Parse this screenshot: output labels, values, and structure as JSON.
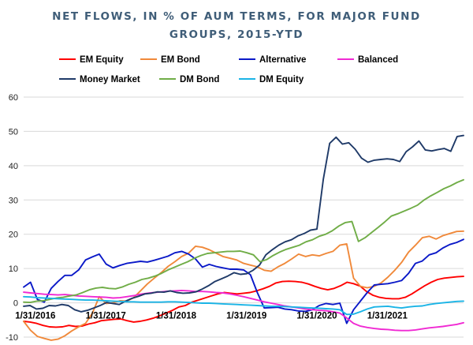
{
  "chart_data": {
    "type": "line",
    "title_lines": [
      "NET FLOWS, IN % OF AUM TERMS, FOR MAJOR FUND",
      "GROUPS, 2015-YTD"
    ],
    "xlabel": "",
    "ylabel": "",
    "ylim": [
      -10,
      60
    ],
    "yticks": [
      "-10",
      "0",
      "10",
      "20",
      "30",
      "40",
      "50",
      "60"
    ],
    "x_tick_labels": [
      "1/31/2016",
      "1/31/2017",
      "1/31/2018",
      "1/31/2019",
      "1/31/2020",
      "1/31/2021"
    ],
    "x_tick_index": [
      2,
      14,
      26,
      38,
      50,
      62
    ],
    "n_points": 76,
    "grid": true,
    "legend_position": "top",
    "series": [
      {
        "name": "EM Equity",
        "color": "#ff0000",
        "values": [
          -5.4,
          -5.6,
          -6.0,
          -6.6,
          -7.0,
          -7.1,
          -7.0,
          -6.6,
          -6.9,
          -6.8,
          -6.2,
          -5.8,
          -5.2,
          -5.0,
          -4.8,
          -4.7,
          -5.2,
          -5.6,
          -5.4,
          -5.0,
          -4.5,
          -3.8,
          -3.0,
          -2.2,
          -1.2,
          -0.8,
          0.2,
          0.8,
          1.4,
          2.0,
          2.6,
          3.0,
          2.8,
          2.6,
          2.8,
          3.0,
          3.5,
          4.1,
          4.8,
          5.8,
          6.2,
          6.3,
          6.2,
          6.0,
          5.5,
          4.8,
          4.2,
          3.8,
          4.2,
          5.0,
          6.0,
          5.6,
          4.9,
          3.3,
          2.2,
          1.6,
          1.3,
          1.2,
          1.2,
          1.6,
          2.6,
          3.8,
          5.0,
          6.0,
          6.8,
          7.2,
          7.4,
          7.6,
          7.7
        ]
      },
      {
        "name": "EM Bond",
        "color": "#f0893a",
        "values": [
          -5.4,
          -8.0,
          -9.8,
          -10.4,
          -10.9,
          -10.6,
          -9.6,
          -8.2,
          -7.0,
          -6.0,
          -3.0,
          1.8,
          -0.2,
          0.0,
          0.6,
          0.5,
          1.5,
          3.5,
          5.5,
          7.2,
          8.8,
          10.6,
          12.0,
          13.5,
          14.5,
          16.5,
          16.2,
          15.5,
          14.5,
          13.5,
          13.0,
          12.5,
          11.5,
          11.0,
          10.5,
          9.5,
          9.2,
          10.5,
          11.5,
          12.8,
          14.2,
          13.5,
          14.0,
          13.7,
          14.4,
          15.0,
          16.8,
          17.2,
          7.2,
          4.8,
          4.4,
          4.8,
          5.8,
          7.5,
          9.5,
          11.8,
          14.8,
          16.8,
          19.0,
          19.4,
          18.6,
          19.6,
          20.2,
          20.8,
          20.9
        ]
      },
      {
        "name": "Alternative",
        "color": "#0a19c8",
        "values": [
          4.6,
          6.0,
          1.0,
          0.2,
          4.2,
          6.2,
          8.0,
          8.0,
          9.6,
          12.5,
          13.4,
          14.2,
          11.3,
          10.2,
          10.9,
          11.5,
          11.8,
          12.1,
          11.9,
          12.4,
          13.0,
          13.6,
          14.6,
          15.0,
          14.2,
          12.8,
          10.4,
          11.2,
          10.6,
          10.2,
          9.8,
          9.8,
          9.6,
          8.2,
          3.0,
          -1.5,
          -1.4,
          -1.3,
          -1.8,
          -2.0,
          -2.4,
          -2.5,
          -2.0,
          -0.8,
          -0.2,
          -0.5,
          -0.1,
          -6.0,
          -2.0,
          0.5,
          3.0,
          5.2,
          5.4,
          5.6,
          6.0,
          6.5,
          8.6,
          11.5,
          12.2,
          14.0,
          14.6,
          16.0,
          17.0,
          17.6,
          18.5
        ]
      },
      {
        "name": "Balanced",
        "color": "#f02ad3",
        "values": [
          3.1,
          2.9,
          2.7,
          2.5,
          2.4,
          2.3,
          2.4,
          2.2,
          2.0,
          1.9,
          1.8,
          1.7,
          1.6,
          1.4,
          1.5,
          1.8,
          2.1,
          2.5,
          2.8,
          3.0,
          3.2,
          3.4,
          3.5,
          3.6,
          3.5,
          3.3,
          3.3,
          3.2,
          3.0,
          2.9,
          2.6,
          2.2,
          1.8,
          1.3,
          0.8,
          0.3,
          -0.1,
          -0.5,
          -0.9,
          -1.2,
          -1.5,
          -1.8,
          -2.0,
          -2.2,
          -2.3,
          -2.6,
          -3.0,
          -4.4,
          -6.0,
          -6.8,
          -7.2,
          -7.5,
          -7.7,
          -7.8,
          -8.0,
          -8.1,
          -8.1,
          -7.9,
          -7.6,
          -7.3,
          -7.1,
          -6.9,
          -6.6,
          -6.3,
          -5.8
        ]
      },
      {
        "name": "Money Market",
        "color": "#1f3a68",
        "values": [
          -1.0,
          -0.8,
          -1.8,
          -1.6,
          -0.8,
          -0.9,
          -0.5,
          -0.8,
          -2.0,
          -2.6,
          -2.2,
          -1.5,
          -0.8,
          0.1,
          -0.2,
          -0.5,
          0.5,
          1.3,
          1.9,
          2.6,
          2.8,
          3.2,
          3.1,
          3.5,
          3.0,
          2.8,
          2.9,
          3.2,
          4.0,
          5.0,
          6.2,
          7.0,
          7.8,
          8.8,
          8.3,
          8.5,
          9.5,
          11.0,
          14.0,
          15.5,
          16.8,
          17.8,
          18.4,
          19.5,
          20.2,
          21.2,
          21.5,
          36.0,
          46.5,
          48.3,
          46.3,
          46.7,
          44.8,
          42.2,
          41.0,
          41.6,
          41.8,
          42.0,
          41.8,
          41.2,
          44.1,
          45.5,
          47.2,
          44.6,
          44.3,
          44.7,
          45.0,
          44.2,
          48.5,
          48.8
        ]
      },
      {
        "name": "DM Bond",
        "color": "#70ad47",
        "values": [
          0.2,
          0.1,
          0.5,
          0.6,
          1.0,
          1.4,
          1.6,
          2.0,
          2.3,
          3.0,
          3.8,
          4.3,
          4.5,
          4.2,
          4.1,
          4.6,
          5.4,
          6.0,
          6.8,
          7.2,
          7.8,
          8.6,
          9.6,
          10.4,
          11.2,
          12.0,
          13.0,
          13.8,
          14.4,
          14.6,
          14.8,
          15.0,
          15.0,
          15.1,
          14.6,
          14.0,
          12.0,
          12.6,
          13.8,
          14.8,
          15.6,
          16.2,
          16.8,
          17.8,
          18.4,
          19.4,
          20.0,
          21.0,
          22.4,
          23.4,
          23.7,
          17.9,
          19.0,
          20.5,
          22.0,
          23.6,
          25.3,
          26.0,
          26.8,
          27.6,
          28.5,
          30.0,
          31.2,
          32.2,
          33.3,
          34.1,
          35.1,
          35.9
        ]
      },
      {
        "name": "DM Equity",
        "color": "#1ab4e6",
        "values": [
          1.8,
          1.7,
          1.5,
          1.4,
          1.3,
          1.2,
          1.1,
          1.0,
          0.9,
          0.8,
          0.8,
          0.7,
          0.6,
          0.5,
          0.4,
          0.3,
          0.3,
          0.2,
          0.2,
          0.2,
          0.2,
          0.3,
          0.3,
          0.2,
          0.1,
          0.0,
          -0.1,
          -0.1,
          -0.2,
          -0.3,
          -0.4,
          -0.5,
          -0.6,
          -0.7,
          -0.8,
          -0.9,
          -1.0,
          -1.0,
          -1.1,
          -1.2,
          -1.3,
          -1.4,
          -1.5,
          -1.6,
          -1.7,
          -1.8,
          -2.0,
          -3.4,
          -3.3,
          -2.6,
          -1.8,
          -1.2,
          -1.1,
          -1.0,
          -1.3,
          -1.5,
          -1.2,
          -1.0,
          -0.9,
          -0.5,
          -0.2,
          0.0,
          0.2,
          0.4,
          0.5
        ]
      }
    ]
  }
}
